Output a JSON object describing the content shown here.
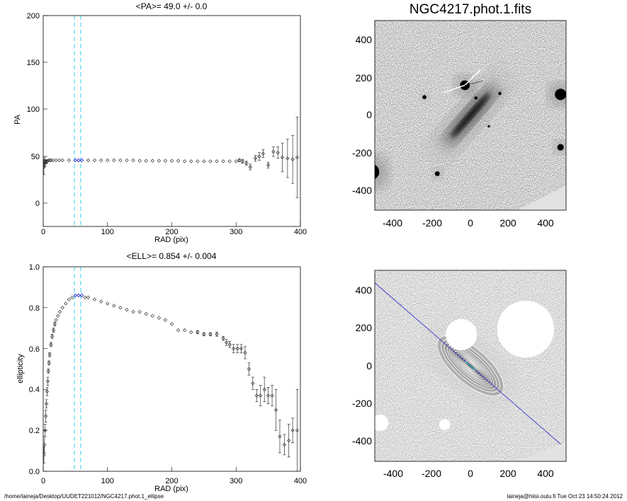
{
  "charts": {
    "pa": {
      "title": "<PA>=  49.0 +/-   0.0",
      "xlabel": "RAD (pix)",
      "ylabel": "PA",
      "xticks": [
        "0",
        "100",
        "200",
        "300",
        "400"
      ],
      "yticks": [
        "0",
        "50",
        "100",
        "150",
        "200"
      ]
    },
    "ell": {
      "title": "<ELL>= 0.854 +/-  0.004",
      "xlabel": "RAD (pix)",
      "ylabel": "ellipticity",
      "xticks": [
        "0",
        "100",
        "200",
        "300",
        "400"
      ],
      "yticks": [
        "0.0",
        "0.2",
        "0.4",
        "0.6",
        "0.8",
        "1.0"
      ]
    },
    "image": {
      "title": "NGC4217.phot.1.fits",
      "xticks": [
        "-400",
        "-200",
        "0",
        "200",
        "400"
      ],
      "yticks": [
        "400",
        "200",
        "0",
        "-200",
        "-400"
      ]
    },
    "contour": {
      "xticks": [
        "-400",
        "-200",
        "0",
        "200",
        "400"
      ],
      "yticks": [
        "400",
        "200",
        "0",
        "-200",
        "-400"
      ]
    }
  },
  "footer": {
    "left": "/home/laineja/Desktop/UUDET221012/NGC4217.phot.1_ellipse",
    "right": "laineja@hiisi.oulu.fi  Tue Oct 23 14:50:24 2012"
  },
  "colors": {
    "fit_range": "#33ccee",
    "highlight": "#0000cc",
    "major_axis": "#3333cc",
    "points": "#333333"
  },
  "chart_data": [
    {
      "type": "scatter",
      "title": "<PA>=  49.0 +/-   0.0",
      "xlabel": "RAD (pix)",
      "ylabel": "PA",
      "xlim": [
        0,
        400
      ],
      "ylim": [
        -20,
        200
      ],
      "fit_range": [
        50,
        60
      ],
      "series": [
        {
          "x": [
            1,
            2,
            3,
            4,
            5,
            6,
            8,
            10,
            12,
            15,
            20,
            25,
            30,
            40,
            50,
            55,
            60,
            70,
            80,
            90,
            100,
            110,
            120,
            130,
            140,
            150,
            160,
            170,
            180,
            190,
            200,
            210,
            220,
            230,
            240,
            250,
            260,
            270,
            280,
            290,
            300,
            305,
            310,
            316,
            322,
            330,
            336,
            342,
            350,
            358,
            365,
            372,
            380,
            388,
            395
          ],
          "y": [
            42,
            47,
            46,
            48,
            47,
            48,
            49,
            49,
            49,
            49,
            49,
            49,
            49,
            49,
            49,
            49,
            49,
            49,
            49,
            49,
            49,
            49,
            49,
            49,
            49,
            48.5,
            48.5,
            48.5,
            48.5,
            48.5,
            48.5,
            48.5,
            48,
            48,
            48,
            48,
            48,
            48,
            48,
            48,
            48,
            49,
            48,
            46,
            42,
            51,
            53,
            56,
            44,
            58,
            57,
            52,
            51,
            50,
            52
          ],
          "err": [
            8,
            5,
            3,
            2,
            1.5,
            1,
            1,
            0.5,
            0.5,
            0.5,
            0.5,
            0.5,
            0.5,
            0.5,
            0.5,
            0.5,
            0.5,
            0.5,
            0.5,
            0.5,
            0.5,
            0.5,
            0.5,
            0.5,
            0.5,
            0.5,
            0.5,
            0.5,
            0.5,
            0.5,
            0.5,
            0.8,
            0.8,
            0.8,
            0.8,
            0.8,
            1,
            1,
            1,
            1,
            1,
            1.5,
            2,
            2,
            3,
            3,
            4,
            4,
            3,
            5,
            6,
            15,
            20,
            25,
            42
          ]
        }
      ]
    },
    {
      "type": "scatter",
      "title": "<ELL>= 0.854 +/-  0.004",
      "xlabel": "RAD (pix)",
      "ylabel": "ellipticity",
      "xlim": [
        0,
        400
      ],
      "ylim": [
        0,
        1
      ],
      "fit_range": [
        50,
        60
      ],
      "series": [
        {
          "x": [
            1,
            2,
            3,
            4,
            5,
            6,
            7,
            8,
            9,
            10,
            12,
            14,
            16,
            18,
            20,
            23,
            26,
            30,
            35,
            40,
            45,
            50,
            55,
            60,
            65,
            70,
            80,
            90,
            100,
            110,
            120,
            130,
            140,
            150,
            160,
            170,
            180,
            190,
            200,
            210,
            220,
            230,
            240,
            250,
            260,
            270,
            280,
            285,
            290,
            296,
            302,
            308,
            314,
            320,
            326,
            332,
            338,
            344,
            350,
            356,
            362,
            368,
            375,
            382,
            388,
            395
          ],
          "y": [
            0.08,
            0.13,
            0.2,
            0.27,
            0.33,
            0.39,
            0.44,
            0.49,
            0.53,
            0.57,
            0.62,
            0.66,
            0.69,
            0.72,
            0.74,
            0.76,
            0.78,
            0.8,
            0.82,
            0.84,
            0.85,
            0.86,
            0.86,
            0.86,
            0.85,
            0.85,
            0.84,
            0.83,
            0.82,
            0.81,
            0.8,
            0.79,
            0.78,
            0.78,
            0.77,
            0.76,
            0.75,
            0.74,
            0.72,
            0.69,
            0.69,
            0.68,
            0.68,
            0.67,
            0.67,
            0.67,
            0.65,
            0.63,
            0.62,
            0.6,
            0.6,
            0.6,
            0.58,
            0.5,
            0.43,
            0.37,
            0.37,
            0.4,
            0.37,
            0.37,
            0.3,
            0.17,
            0.13,
            0.15,
            0.2,
            0.2
          ],
          "err": [
            0.04,
            0.04,
            0.03,
            0.03,
            0.02,
            0.02,
            0.02,
            0.01,
            0.01,
            0.01,
            0.01,
            0.01,
            0.01,
            0.01,
            0.005,
            0.005,
            0.005,
            0.005,
            0.005,
            0.005,
            0.005,
            0.005,
            0.005,
            0.005,
            0.005,
            0.005,
            0.005,
            0.005,
            0.005,
            0.005,
            0.005,
            0.005,
            0.005,
            0.005,
            0.005,
            0.005,
            0.005,
            0.005,
            0.005,
            0.005,
            0.005,
            0.005,
            0.008,
            0.008,
            0.008,
            0.01,
            0.01,
            0.015,
            0.015,
            0.02,
            0.02,
            0.02,
            0.03,
            0.03,
            0.03,
            0.03,
            0.05,
            0.06,
            0.04,
            0.05,
            0.1,
            0.08,
            0.05,
            0.08,
            0.06,
            0.2
          ]
        }
      ]
    },
    {
      "type": "heatmap",
      "title": "NGC4217.phot.1.fits",
      "xlim": [
        -520,
        520
      ],
      "ylim": [
        -520,
        520
      ],
      "galaxy": {
        "center": [
          0,
          0
        ],
        "pa_deg": 49,
        "semimajor": 210,
        "semiminor": 35
      },
      "stars": [
        [
          -30,
          165,
          12
        ],
        [
          490,
          115,
          14
        ],
        [
          -540,
          -310,
          20
        ],
        [
          -250,
          100,
          5
        ],
        [
          160,
          120,
          4
        ],
        [
          490,
          -175,
          8
        ],
        [
          -180,
          -320,
          6
        ],
        [
          30,
          95,
          4
        ],
        [
          100,
          -60,
          3
        ]
      ]
    },
    {
      "type": "heatmap",
      "xlim": [
        -520,
        520
      ],
      "ylim": [
        -520,
        520
      ],
      "major_axis_angle_deg": -41,
      "contours": [
        {
          "a": 40,
          "b": 10
        },
        {
          "a": 55,
          "b": 14
        },
        {
          "a": 70,
          "b": 18
        },
        {
          "a": 85,
          "b": 22
        },
        {
          "a": 100,
          "b": 26
        },
        {
          "a": 115,
          "b": 31
        },
        {
          "a": 130,
          "b": 36
        },
        {
          "a": 145,
          "b": 42
        },
        {
          "a": 160,
          "b": 50
        },
        {
          "a": 180,
          "b": 62
        },
        {
          "a": 200,
          "b": 76
        },
        {
          "a": 225,
          "b": 95
        }
      ],
      "masks": [
        [
          -50,
          170,
          85
        ],
        [
          300,
          200,
          155
        ],
        [
          -490,
          -310,
          45
        ],
        [
          -140,
          -320,
          30
        ]
      ]
    }
  ]
}
